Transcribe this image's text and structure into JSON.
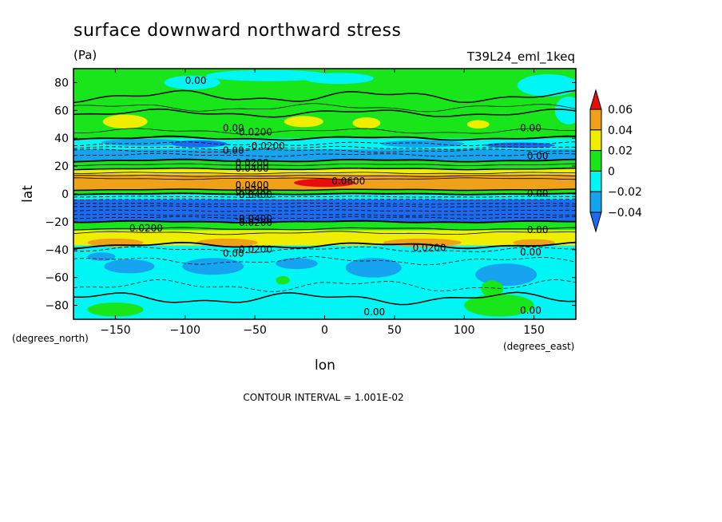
{
  "chart_data": {
    "type": "heatmap",
    "title": "surface downward northward stress",
    "units": "(Pa)",
    "dataset_label": "T39L24_eml_1keq",
    "xlabel": "lon",
    "ylabel": "lat",
    "x_units": "(degrees_east)",
    "y_units": "(degrees_north)",
    "xlim": [
      -180,
      180
    ],
    "ylim": [
      -90,
      90
    ],
    "x_ticks": [
      -150,
      -100,
      -50,
      0,
      50,
      100,
      150
    ],
    "y_ticks": [
      -80,
      -60,
      -40,
      -20,
      0,
      20,
      40,
      60,
      80
    ],
    "x_tick_labels": [
      "−150",
      "−100",
      "−50",
      "0",
      "50",
      "100",
      "150"
    ],
    "y_tick_labels": [
      "−80",
      "−60",
      "−40",
      "−20",
      "0",
      "20",
      "40",
      "60",
      "80"
    ],
    "contour_interval": "CONTOUR INTERVAL = 1.001E-02",
    "colorbar": {
      "levels": [
        -0.04,
        -0.02,
        0,
        0.02,
        0.04,
        0.06
      ],
      "level_labels": [
        "−0.04",
        "−0.02",
        "0",
        "0.02",
        "0.04",
        "0.06"
      ],
      "colors": [
        "#1a6af2",
        "#16a3f0",
        "#00f5f5",
        "#18e51a",
        "#f0ee00",
        "#f0a11a",
        "#e80e0e"
      ]
    },
    "zonal_bands": [
      {
        "lat_from": 90,
        "lat_to": 58,
        "value_class": "0 to 0.02"
      },
      {
        "lat_from": 58,
        "lat_to": 40,
        "value_class": "0 to 0.02 with 0.02 to 0.04 cells near 50N"
      },
      {
        "lat_from": 40,
        "lat_to": 32,
        "value_class": "-0.02 to 0"
      },
      {
        "lat_from": 32,
        "lat_to": 24,
        "value_class": "-0.04 to -0.02"
      },
      {
        "lat_from": 24,
        "lat_to": 18,
        "value_class": "0 to 0.02"
      },
      {
        "lat_from": 18,
        "lat_to": 14,
        "value_class": "0.02 to 0.04"
      },
      {
        "lat_from": 14,
        "lat_to": 3,
        "value_class": "0.04 to 0.06, max above 0.06 near 0E 10N"
      },
      {
        "lat_from": 3,
        "lat_to": 0,
        "value_class": "0 to 0.02"
      },
      {
        "lat_from": 0,
        "lat_to": -4,
        "value_class": "-0.02 to 0"
      },
      {
        "lat_from": -4,
        "lat_to": -20,
        "value_class": "below -0.04"
      },
      {
        "lat_from": -20,
        "lat_to": -26,
        "value_class": "0 to 0.02"
      },
      {
        "lat_from": -26,
        "lat_to": -37,
        "value_class": "0.02 to 0.04, 0.04 to 0.06 cells near 35S"
      },
      {
        "lat_from": -37,
        "lat_to": -90,
        "value_class": "-0.02 to 0 with -0.04 to -0.02 patches"
      }
    ],
    "contour_labels": [
      {
        "lon": -100,
        "lat": 79,
        "text": "0.00"
      },
      {
        "lon": -73,
        "lat": 45,
        "text": "0.00"
      },
      {
        "lon": -64,
        "lat": 42,
        "text": "-0.0200"
      },
      {
        "lon": -55,
        "lat": 32,
        "text": "-0.0200"
      },
      {
        "lon": -73,
        "lat": 29,
        "text": "0.00"
      },
      {
        "lon": -64,
        "lat": 20,
        "text": "0.0200"
      },
      {
        "lon": -64,
        "lat": 16,
        "text": "0.0400"
      },
      {
        "lon": 5,
        "lat": 7,
        "text": "0.0600"
      },
      {
        "lon": -64,
        "lat": 4,
        "text": "0.0400"
      },
      {
        "lon": -64,
        "lat": 0,
        "text": "0.0200"
      },
      {
        "lon": -64,
        "lat": -3,
        "text": "-0.0400"
      },
      {
        "lon": -64,
        "lat": -20,
        "text": "-0.0400"
      },
      {
        "lon": -64,
        "lat": -23,
        "text": "-0.0200"
      },
      {
        "lon": -140,
        "lat": -27,
        "text": "0.0200"
      },
      {
        "lon": -64,
        "lat": -42,
        "text": "-0.0200"
      },
      {
        "lon": -73,
        "lat": -45,
        "text": "0.00"
      },
      {
        "lon": 63,
        "lat": -41,
        "text": "0.0200"
      },
      {
        "lon": 140,
        "lat": 45,
        "text": "0.00"
      },
      {
        "lon": 145,
        "lat": 25,
        "text": "0.00"
      },
      {
        "lon": 145,
        "lat": -2,
        "text": "0.00"
      },
      {
        "lon": 145,
        "lat": -28,
        "text": "0.00"
      },
      {
        "lon": 140,
        "lat": -44,
        "text": "0.00"
      },
      {
        "lon": 140,
        "lat": -86,
        "text": "0.00"
      },
      {
        "lon": 28,
        "lat": -87,
        "text": "0.00"
      }
    ]
  }
}
